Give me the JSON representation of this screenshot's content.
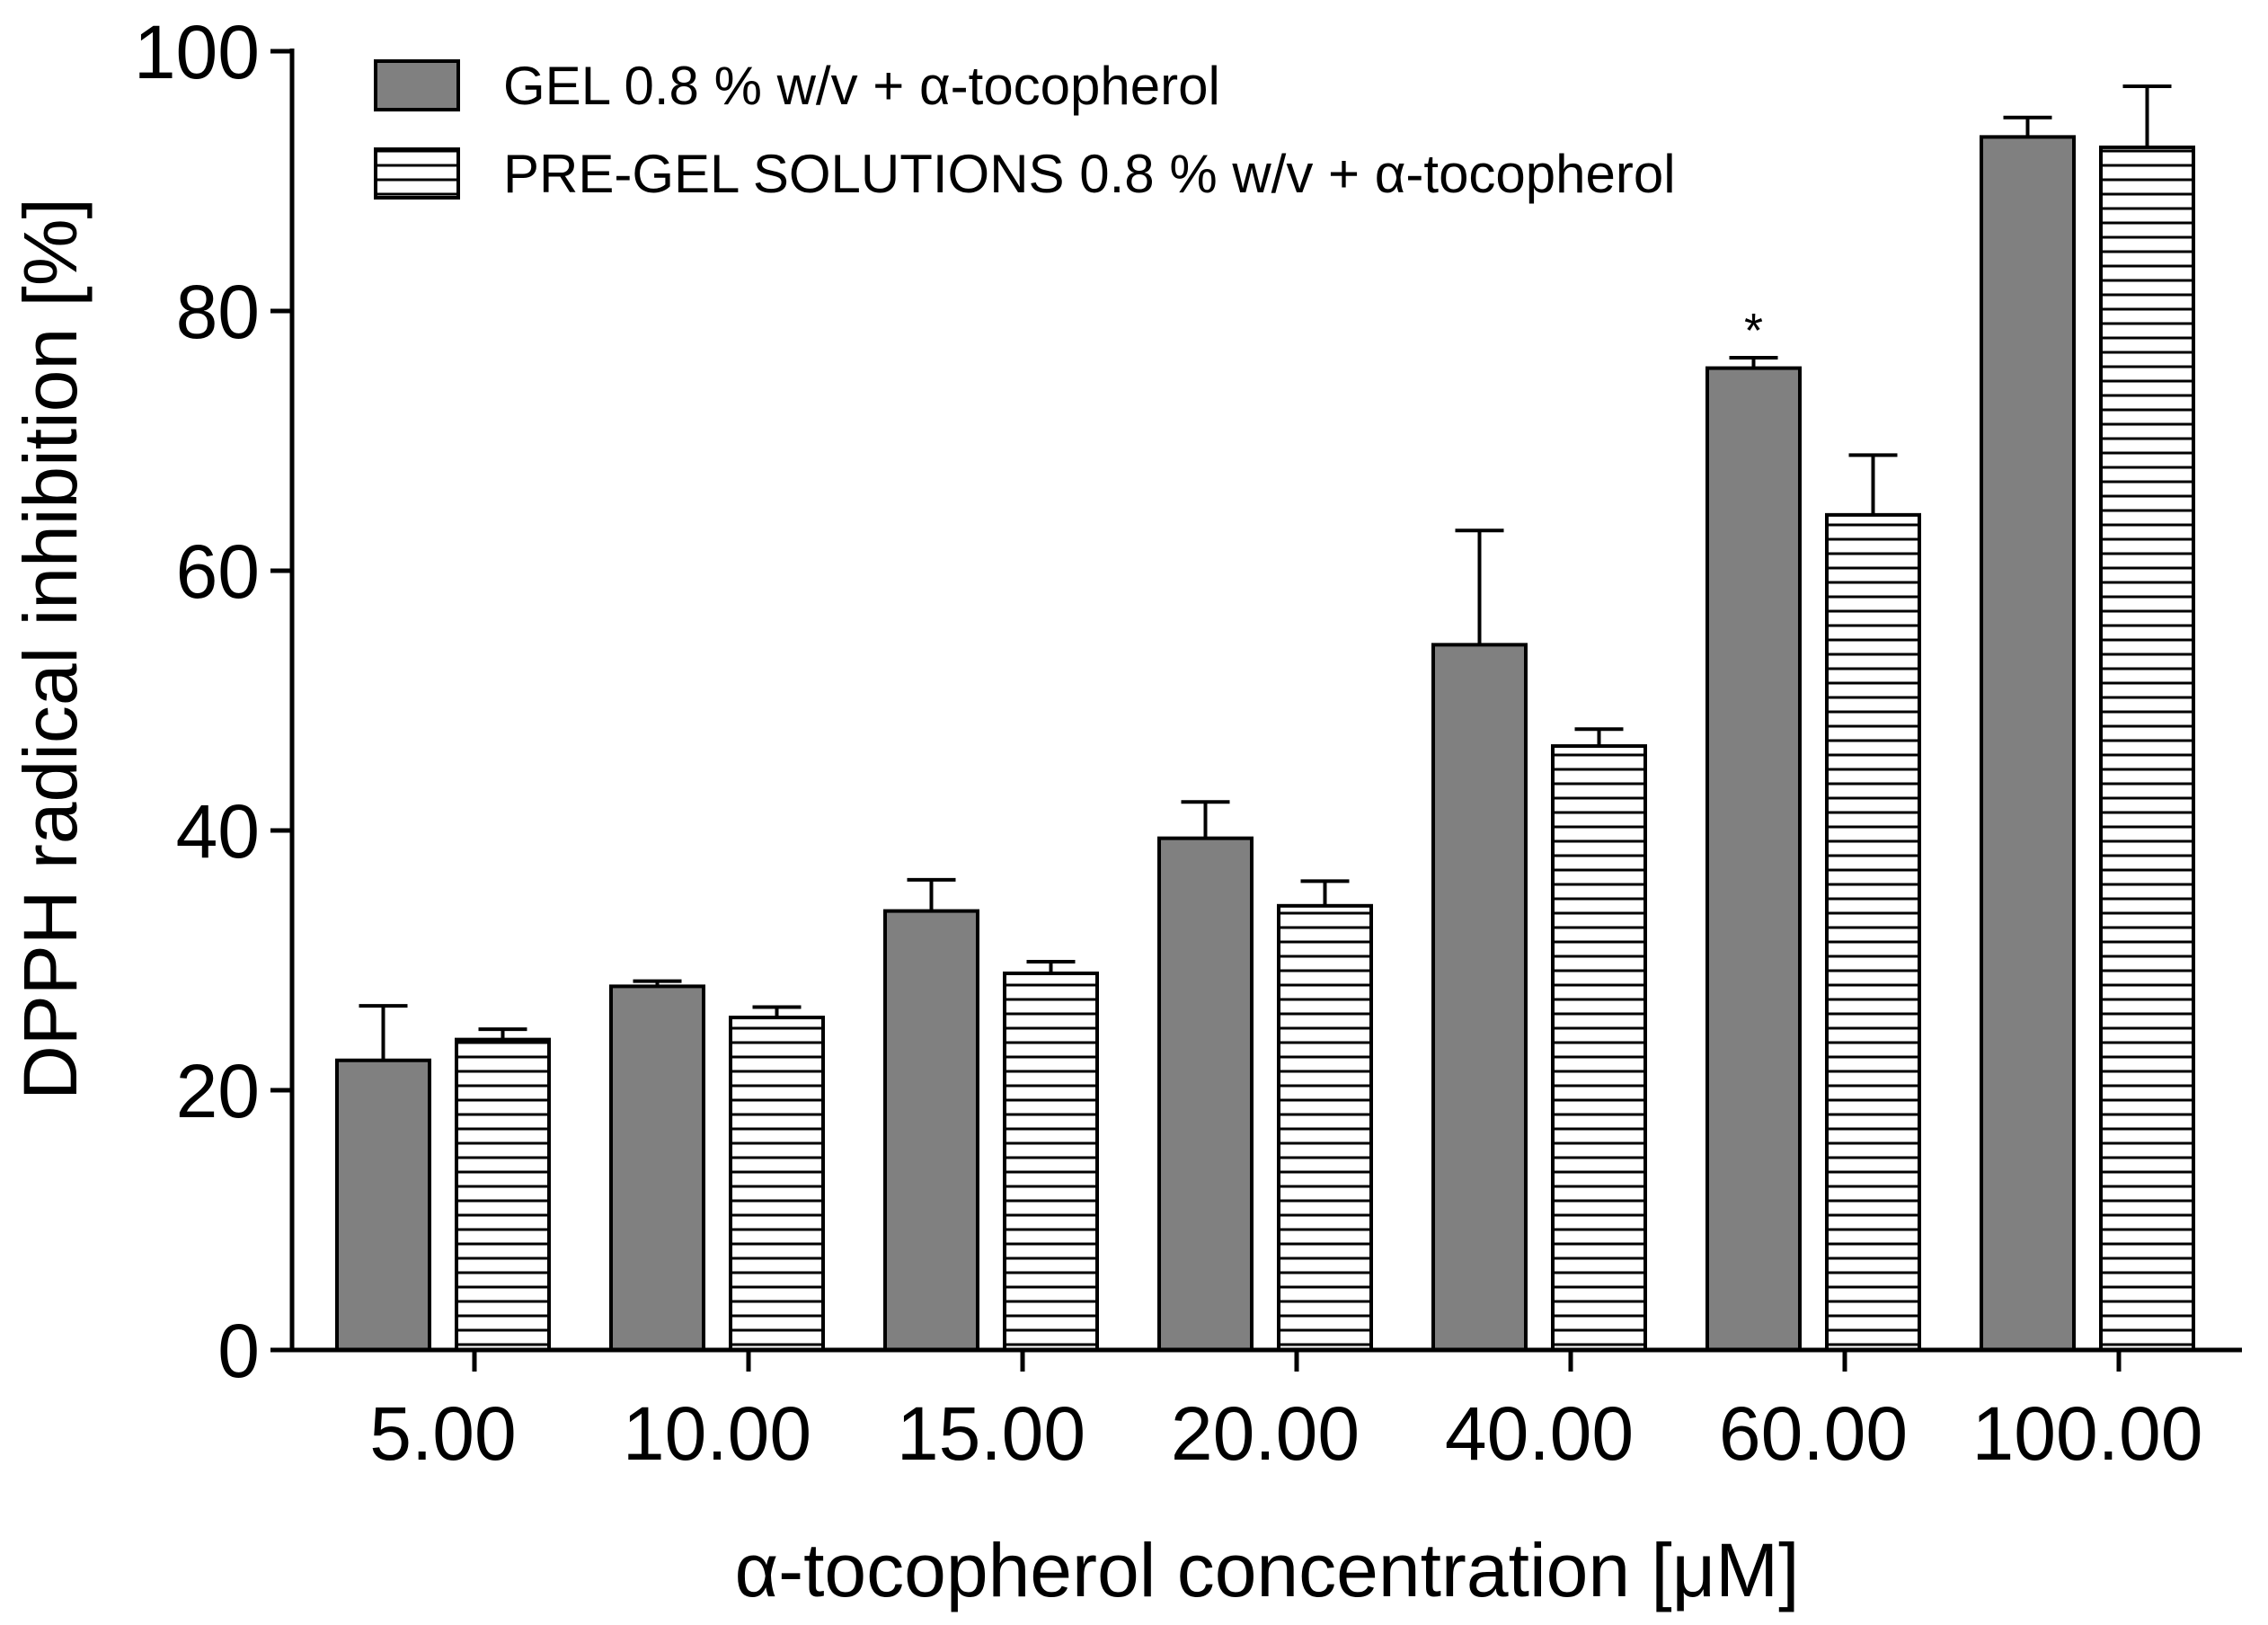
{
  "chart_data": {
    "type": "bar",
    "title": "",
    "xlabel": "α-tocopherol concentration [μM]",
    "ylabel": "DPPH radical inhibition [%]",
    "ylim": [
      0,
      100
    ],
    "yticks": [
      "0",
      "20",
      "40",
      "60",
      "80",
      "100"
    ],
    "categories": [
      "5.00",
      "10.00",
      "15.00",
      "20.00",
      "40.00",
      "60.00",
      "100.00"
    ],
    "legend_position": "top-left",
    "series": [
      {
        "name": "GEL 0.8 % w/v + α-tocopherol",
        "values": [
          22.3,
          28.0,
          33.8,
          39.4,
          54.3,
          75.6,
          93.4
        ],
        "errors": [
          4.2,
          0.4,
          2.4,
          2.8,
          8.8,
          0.8,
          1.5
        ],
        "color": "#808080",
        "pattern": "solid"
      },
      {
        "name": "PRE-GEL SOLUTIONS 0.8 % w/v + α-tocopherol",
        "values": [
          23.9,
          25.6,
          29.0,
          34.2,
          46.5,
          64.3,
          92.6
        ],
        "errors": [
          0.8,
          0.8,
          0.9,
          1.9,
          1.3,
          4.6,
          4.7
        ],
        "color": "#ffffff",
        "pattern": "horizontal-stripes"
      }
    ],
    "annotations": [
      {
        "text": "*",
        "category": "60.00",
        "series": 0
      }
    ]
  }
}
